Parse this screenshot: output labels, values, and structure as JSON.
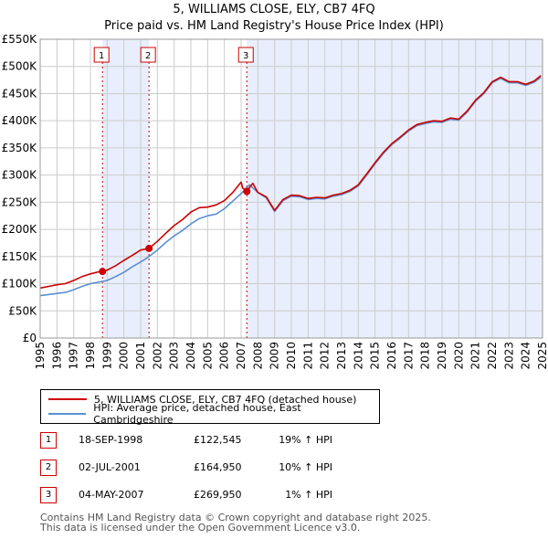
{
  "title_line1": "5, WILLIAMS CLOSE, ELY, CB7 4FQ",
  "title_line2": "Price paid vs. HM Land Registry's House Price Index (HPI)",
  "colors": {
    "property": "#cc0000",
    "hpi": "#5b8fd0",
    "shade": "#e8eefb",
    "grid": "#cccccc",
    "marker_line": "#cc0000"
  },
  "chart_data": {
    "type": "line",
    "title": "Price paid vs. HM Land Registry's House Price Index (HPI)",
    "xlim": [
      1995,
      2025
    ],
    "ylim": [
      0,
      550000
    ],
    "x_ticks": [
      "1995",
      "1996",
      "1997",
      "1998",
      "1999",
      "2000",
      "2001",
      "2002",
      "2003",
      "2004",
      "2005",
      "2006",
      "2007",
      "2008",
      "2009",
      "2010",
      "2011",
      "2012",
      "2013",
      "2014",
      "2015",
      "2016",
      "2017",
      "2018",
      "2019",
      "2020",
      "2021",
      "2022",
      "2023",
      "2024",
      "2025"
    ],
    "y_ticks": [
      {
        "value": 0,
        "label": "£0"
      },
      {
        "value": 50000,
        "label": "£50K"
      },
      {
        "value": 100000,
        "label": "£100K"
      },
      {
        "value": 150000,
        "label": "£150K"
      },
      {
        "value": 200000,
        "label": "£200K"
      },
      {
        "value": 250000,
        "label": "£250K"
      },
      {
        "value": 300000,
        "label": "£300K"
      },
      {
        "value": 350000,
        "label": "£350K"
      },
      {
        "value": 400000,
        "label": "£400K"
      },
      {
        "value": 450000,
        "label": "£450K"
      },
      {
        "value": 500000,
        "label": "£500K"
      },
      {
        "value": 550000,
        "label": "£550K"
      }
    ],
    "series": [
      {
        "name": "5, WILLIAMS CLOSE, ELY, CB7 4FQ (detached house)",
        "color": "#cc0000",
        "x": [
          1995,
          1995.5,
          1996,
          1996.5,
          1997,
          1997.5,
          1998,
          1998.5,
          1998.72,
          1999,
          1999.5,
          2000,
          2000.5,
          2001,
          2001.5,
          2002,
          2002.5,
          2003,
          2003.5,
          2004,
          2004.5,
          2005,
          2005.5,
          2006,
          2006.5,
          2007,
          2007.1,
          2007.34,
          2007.7,
          2008,
          2008.5,
          2009,
          2009.5,
          2010,
          2010.5,
          2011,
          2011.5,
          2012,
          2012.5,
          2013,
          2013.5,
          2014,
          2014.5,
          2015,
          2015.5,
          2016,
          2016.5,
          2017,
          2017.5,
          2018,
          2018.5,
          2019,
          2019.5,
          2020,
          2020.5,
          2021,
          2021.5,
          2022,
          2022.5,
          2023,
          2023.5,
          2024,
          2024.5,
          2024.9
        ],
        "y": [
          92000,
          95000,
          98000,
          100000,
          106000,
          113000,
          118000,
          122000,
          122545,
          125000,
          133000,
          143000,
          152000,
          162000,
          164950,
          178000,
          193000,
          207000,
          218000,
          232000,
          240000,
          241000,
          245000,
          253000,
          268000,
          287000,
          276000,
          269950,
          285000,
          268000,
          260000,
          235000,
          255000,
          263000,
          262000,
          257000,
          259000,
          258000,
          263000,
          266000,
          272000,
          282000,
          302000,
          323000,
          342000,
          358000,
          370000,
          383000,
          393000,
          397000,
          400000,
          399000,
          405000,
          403000,
          418000,
          438000,
          452000,
          472000,
          480000,
          472000,
          472000,
          467000,
          473000,
          483000
        ]
      },
      {
        "name": "HPI: Average price, detached house, East Cambridgeshire",
        "color": "#5b8fd0",
        "x": [
          1995,
          1995.5,
          1996,
          1996.5,
          1997,
          1997.5,
          1998,
          1998.5,
          1999,
          1999.5,
          2000,
          2000.5,
          2001,
          2001.5,
          2002,
          2002.5,
          2003,
          2003.5,
          2004,
          2004.5,
          2005,
          2005.5,
          2006,
          2006.5,
          2007,
          2007.5,
          2008,
          2008.5,
          2009,
          2009.5,
          2010,
          2010.5,
          2011,
          2011.5,
          2012,
          2012.5,
          2013,
          2013.5,
          2014,
          2014.5,
          2015,
          2015.5,
          2016,
          2016.5,
          2017,
          2017.5,
          2018,
          2018.5,
          2019,
          2019.5,
          2020,
          2020.5,
          2021,
          2021.5,
          2022,
          2022.5,
          2023,
          2023.5,
          2024,
          2024.5,
          2024.9
        ],
        "y": [
          78000,
          80000,
          82000,
          84000,
          89000,
          95000,
          100000,
          103000,
          106000,
          113000,
          121000,
          131000,
          140000,
          150000,
          162000,
          176000,
          188000,
          198000,
          210000,
          220000,
          225000,
          228000,
          238000,
          252000,
          266000,
          282000,
          268000,
          258000,
          233000,
          253000,
          261000,
          260000,
          255000,
          257000,
          256000,
          261000,
          264000,
          270000,
          280000,
          300000,
          321000,
          340000,
          356000,
          368000,
          381000,
          391000,
          395000,
          398000,
          397000,
          403000,
          401000,
          416000,
          436000,
          450000,
          470000,
          478000,
          470000,
          470000,
          465000,
          471000,
          480000
        ]
      }
    ],
    "sales": [
      {
        "label": "1",
        "x": 1998.72,
        "y": 122545
      },
      {
        "label": "2",
        "x": 2001.5,
        "y": 164950
      },
      {
        "label": "3",
        "x": 2007.34,
        "y": 269950
      }
    ]
  },
  "legend": {
    "property_label": "5, WILLIAMS CLOSE, ELY, CB7 4FQ (detached house)",
    "hpi_label": "HPI: Average price, detached house, East Cambridgeshire"
  },
  "sales_table": [
    {
      "num": "1",
      "date": "18-SEP-1998",
      "price": "£122,545",
      "hpi": "19% ↑ HPI"
    },
    {
      "num": "2",
      "date": "02-JUL-2001",
      "price": "£164,950",
      "hpi": "10% ↑ HPI"
    },
    {
      "num": "3",
      "date": "04-MAY-2007",
      "price": "£269,950",
      "hpi": "1% ↑ HPI"
    }
  ],
  "footer_line1": "Contains HM Land Registry data © Crown copyright and database right 2025.",
  "footer_line2": "This data is licensed under the Open Government Licence v3.0."
}
